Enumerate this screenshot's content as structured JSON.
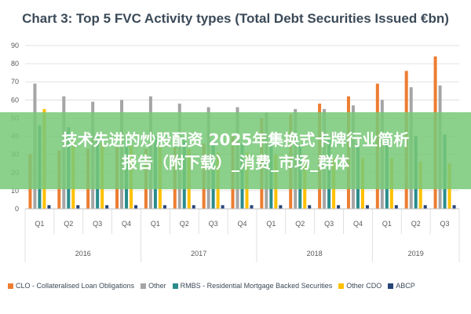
{
  "chart_data": {
    "type": "bar",
    "title": "Chart 3: Top 5 FVC Activity types (Total Debt Securities Issued €bn)",
    "xlabel": "",
    "ylabel": "",
    "ylim": [
      0,
      90
    ],
    "yticks": [
      "0",
      "10",
      "20",
      "30",
      "40",
      "50",
      "60",
      "70",
      "80",
      "90"
    ],
    "grid": true,
    "legend_position": "bottom",
    "categories": [
      "Q1",
      "Q2",
      "Q3",
      "Q4",
      "Q1",
      "Q2",
      "Q3",
      "Q4",
      "Q1",
      "Q2",
      "Q3",
      "Q4",
      "Q1",
      "Q2",
      "Q3"
    ],
    "groups": [
      {
        "label": "2016",
        "count": 4
      },
      {
        "label": "2017",
        "count": 4
      },
      {
        "label": "2018",
        "count": 4
      },
      {
        "label": "2019",
        "count": 3
      }
    ],
    "series": [
      {
        "name": "CLO - Collateralised Loan Obligations",
        "color": "#ed7d31",
        "values": [
          30,
          32,
          33,
          34,
          33,
          34,
          36,
          40,
          50,
          52,
          58,
          62,
          69,
          76,
          84
        ]
      },
      {
        "name": "Other",
        "color": "#a5a5a5",
        "values": [
          69,
          62,
          59,
          60,
          62,
          58,
          56,
          56,
          53,
          55,
          55,
          57,
          60,
          67,
          68
        ]
      },
      {
        "name": "RMBS - Residential Mortgage Backed Securities",
        "color": "#2a8c8c",
        "values": [
          46,
          45,
          42,
          40,
          40,
          39,
          37,
          36,
          36,
          35,
          38,
          36,
          38,
          40,
          41
        ]
      },
      {
        "name": "Other CDO",
        "color": "#ffc000",
        "values": [
          55,
          38,
          36,
          35,
          35,
          33,
          31,
          31,
          30,
          29,
          28,
          28,
          28,
          26,
          25
        ]
      },
      {
        "name": "ABCP",
        "color": "#264478",
        "values": [
          2,
          2,
          2,
          2,
          2,
          2,
          2,
          2,
          2,
          2,
          2,
          2,
          2,
          2,
          2
        ]
      }
    ]
  },
  "overlay": {
    "line1": "技术先进的炒股配资 2025年集换式卡牌行业简析",
    "line2": "报告（附下载）_消费_市场_群体"
  }
}
